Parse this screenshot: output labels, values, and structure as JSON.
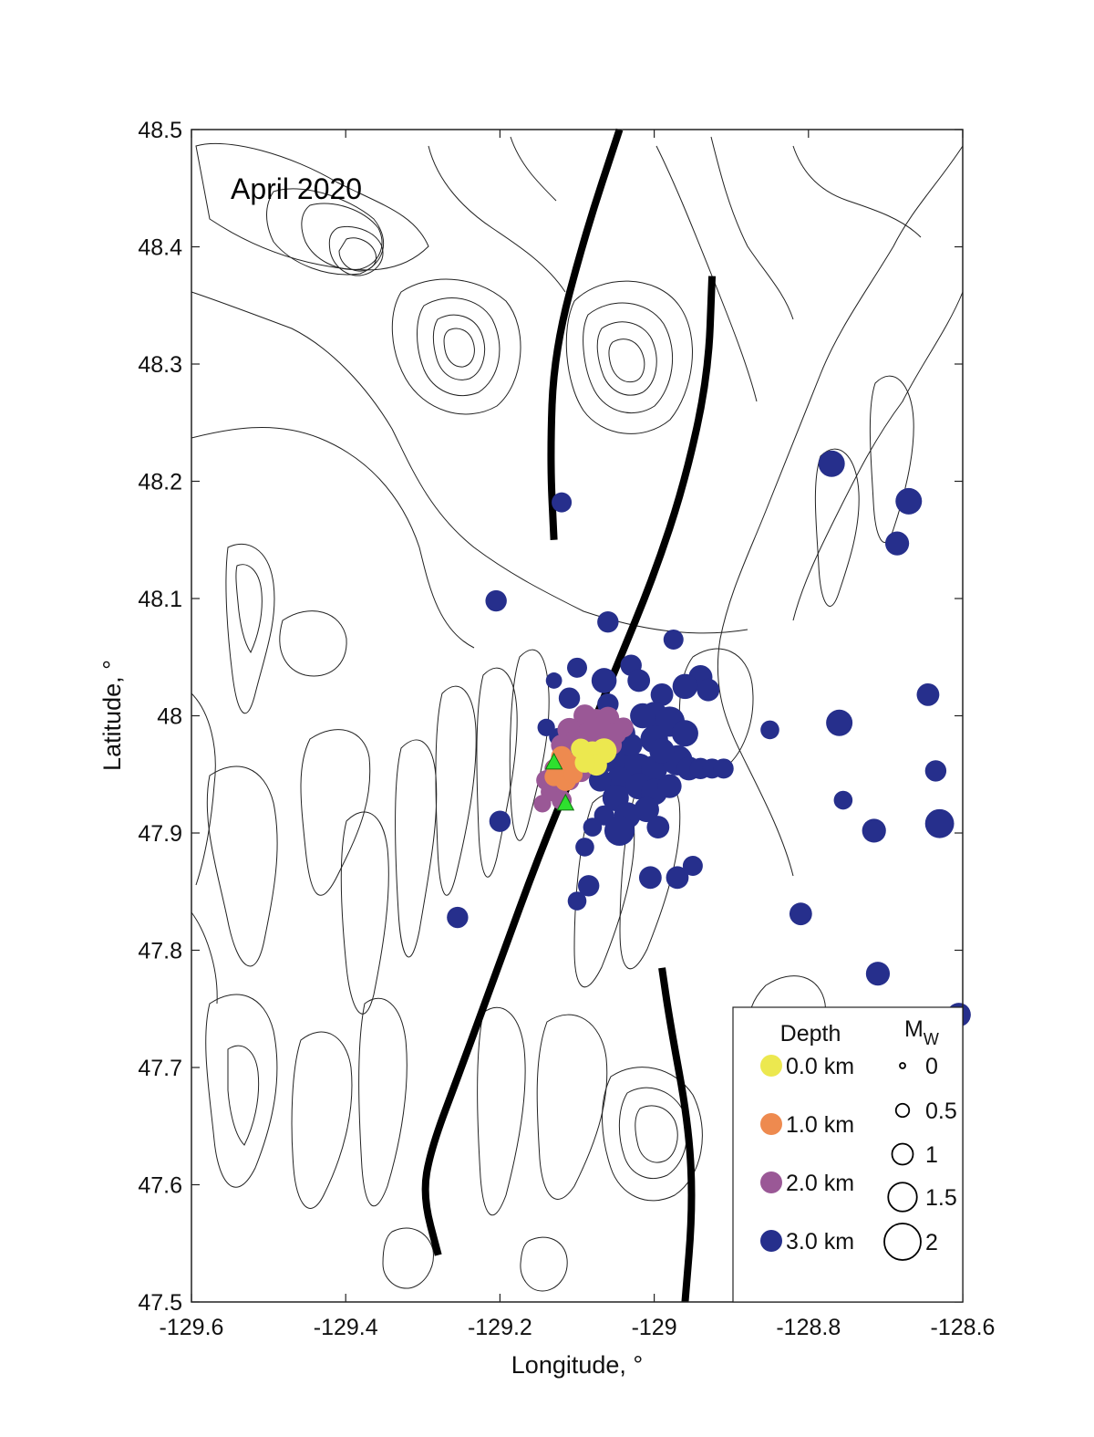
{
  "panel_label": "April 2020",
  "chart_data": {
    "type": "scatter",
    "xlabel": "Longitude, °",
    "ylabel": "Latitude, °",
    "xlim": [
      -129.6,
      -128.6
    ],
    "ylim": [
      47.5,
      48.5
    ],
    "x_ticks": [
      -129.6,
      -129.4,
      -129.2,
      -129,
      -128.8,
      -128.6
    ],
    "x_tick_labels": [
      "-129.6",
      "-129.4",
      "-129.2",
      "-129",
      "-128.8",
      "-128.6"
    ],
    "y_ticks": [
      47.5,
      47.6,
      47.7,
      47.8,
      47.9,
      48.0,
      48.1,
      48.2,
      48.3,
      48.4,
      48.5
    ],
    "y_tick_labels": [
      "47.5",
      "47.6",
      "47.7",
      "47.8",
      "47.9",
      "48",
      "48.1",
      "48.2",
      "48.3",
      "48.4",
      "48.5"
    ],
    "depth_colors": {
      "0.0": "#ece84f",
      "1.0": "#ee8a4f",
      "2.0": "#9a5896",
      "3.0": "#262f8c"
    },
    "legend": {
      "depth_title": "Depth",
      "depth_entries": [
        {
          "label": "0.0 km",
          "color": "#ece84f"
        },
        {
          "label": "1.0 km",
          "color": "#ee8a4f"
        },
        {
          "label": "2.0 km",
          "color": "#9a5896"
        },
        {
          "label": "3.0 km",
          "color": "#262f8c"
        }
      ],
      "mag_title": "M",
      "mag_subscript": "W",
      "mag_entries": [
        {
          "label": "0",
          "mw": 0
        },
        {
          "label": "0.5",
          "mw": 0.5
        },
        {
          "label": "1",
          "mw": 1
        },
        {
          "label": "1.5",
          "mw": 1.5
        },
        {
          "label": "2",
          "mw": 2
        }
      ]
    },
    "ridge_segments": [
      {
        "name": "northern",
        "points": [
          [
            -129.045,
            48.5
          ],
          [
            -129.09,
            48.41
          ],
          [
            -129.13,
            48.31
          ],
          [
            -129.135,
            48.22
          ],
          [
            -129.13,
            48.15
          ]
        ]
      },
      {
        "name": "middle",
        "points": [
          [
            -128.925,
            48.375
          ],
          [
            -128.93,
            48.29
          ],
          [
            -128.96,
            48.2
          ],
          [
            -129.0,
            48.12
          ],
          [
            -129.05,
            48.04
          ],
          [
            -129.1,
            47.96
          ],
          [
            -129.15,
            47.88
          ],
          [
            -129.2,
            47.79
          ],
          [
            -129.25,
            47.7
          ],
          [
            -129.29,
            47.63
          ],
          [
            -129.3,
            47.59
          ],
          [
            -129.28,
            47.54
          ]
        ]
      },
      {
        "name": "southern",
        "points": [
          [
            -128.99,
            47.785
          ],
          [
            -128.98,
            47.74
          ],
          [
            -128.955,
            47.65
          ],
          [
            -128.95,
            47.58
          ],
          [
            -128.96,
            47.5
          ]
        ]
      }
    ],
    "stations": [
      [
        -129.13,
        47.96
      ],
      [
        -129.115,
        47.925
      ]
    ],
    "series": [
      {
        "depth_km": 3.0,
        "points": [
          [
            -128.77,
            48.215,
            1.5
          ],
          [
            -128.67,
            48.183,
            1.5
          ],
          [
            -128.685,
            48.147,
            1.3
          ],
          [
            -129.12,
            48.182,
            1.0
          ],
          [
            -129.205,
            48.098,
            1.1
          ],
          [
            -129.06,
            48.08,
            1.1
          ],
          [
            -128.975,
            48.065,
            1.0
          ],
          [
            -129.03,
            48.043,
            1.1
          ],
          [
            -129.1,
            48.041,
            1.0
          ],
          [
            -129.13,
            48.03,
            0.7
          ],
          [
            -129.065,
            48.03,
            1.4
          ],
          [
            -129.02,
            48.03,
            1.2
          ],
          [
            -128.94,
            48.033,
            1.3
          ],
          [
            -128.96,
            48.025,
            1.4
          ],
          [
            -128.93,
            48.022,
            1.2
          ],
          [
            -128.99,
            48.018,
            1.2
          ],
          [
            -129.0,
            48.0,
            1.6
          ],
          [
            -128.98,
            47.995,
            1.8
          ],
          [
            -129.11,
            48.015,
            1.1
          ],
          [
            -129.04,
            47.985,
            1.3
          ],
          [
            -129.0,
            47.98,
            1.6
          ],
          [
            -128.96,
            47.985,
            1.5
          ],
          [
            -129.125,
            47.982,
            0.8
          ],
          [
            -128.85,
            47.988,
            0.9
          ],
          [
            -128.76,
            47.994,
            1.5
          ],
          [
            -128.645,
            48.018,
            1.2
          ],
          [
            -129.06,
            47.963,
            1.4
          ],
          [
            -129.04,
            47.963,
            1.8
          ],
          [
            -129.02,
            47.955,
            1.8
          ],
          [
            -129.0,
            47.955,
            1.5
          ],
          [
            -128.97,
            47.962,
            1.8
          ],
          [
            -128.955,
            47.955,
            1.3
          ],
          [
            -128.94,
            47.955,
            1.1
          ],
          [
            -128.925,
            47.955,
            1.0
          ],
          [
            -128.91,
            47.955,
            1.0
          ],
          [
            -129.045,
            47.945,
            1.5
          ],
          [
            -129.02,
            47.94,
            1.5
          ],
          [
            -129.0,
            47.935,
            1.5
          ],
          [
            -128.98,
            47.94,
            1.3
          ],
          [
            -129.05,
            47.93,
            1.5
          ],
          [
            -129.035,
            47.915,
            1.5
          ],
          [
            -129.01,
            47.92,
            1.4
          ],
          [
            -128.995,
            47.905,
            1.2
          ],
          [
            -129.045,
            47.902,
            1.8
          ],
          [
            -128.755,
            47.928,
            0.9
          ],
          [
            -128.635,
            47.953,
            1.1
          ],
          [
            -128.715,
            47.902,
            1.3
          ],
          [
            -128.63,
            47.908,
            1.7
          ],
          [
            -129.065,
            47.915,
            1.0
          ],
          [
            -129.08,
            47.905,
            0.9
          ],
          [
            -129.2,
            47.91,
            1.1
          ],
          [
            -129.09,
            47.888,
            0.9
          ],
          [
            -129.005,
            47.862,
            1.2
          ],
          [
            -128.97,
            47.862,
            1.2
          ],
          [
            -128.95,
            47.872,
            1.0
          ],
          [
            -129.085,
            47.855,
            1.1
          ],
          [
            -129.1,
            47.842,
            0.9
          ],
          [
            -129.255,
            47.828,
            1.1
          ],
          [
            -128.81,
            47.831,
            1.2
          ],
          [
            -128.71,
            47.78,
            1.3
          ],
          [
            -128.605,
            47.745,
            1.3
          ],
          [
            -128.77,
            47.68,
            1.2
          ],
          [
            -129.14,
            47.99,
            0.8
          ],
          [
            -129.06,
            48.01,
            1.1
          ],
          [
            -129.015,
            48.0,
            1.4
          ],
          [
            -129.03,
            47.975,
            1.2
          ],
          [
            -128.99,
            47.97,
            1.4
          ],
          [
            -129.07,
            47.945,
            1.2
          ]
        ]
      },
      {
        "depth_km": 2.0,
        "points": [
          [
            -129.09,
            48.0,
            1.2
          ],
          [
            -129.075,
            47.995,
            1.4
          ],
          [
            -129.06,
            47.998,
            1.2
          ],
          [
            -129.11,
            47.988,
            1.3
          ],
          [
            -129.1,
            47.978,
            1.4
          ],
          [
            -129.085,
            47.985,
            1.2
          ],
          [
            -129.065,
            47.985,
            1.3
          ],
          [
            -129.05,
            47.985,
            1.1
          ],
          [
            -129.04,
            47.99,
            1.0
          ],
          [
            -129.12,
            47.975,
            1.1
          ],
          [
            -129.1,
            47.968,
            1.3
          ],
          [
            -129.08,
            47.97,
            1.1
          ],
          [
            -129.115,
            47.96,
            1.1
          ],
          [
            -129.11,
            47.945,
            1.0
          ],
          [
            -129.125,
            47.94,
            1.1
          ],
          [
            -129.135,
            47.935,
            0.9
          ],
          [
            -129.12,
            47.928,
            1.0
          ],
          [
            -129.14,
            47.945,
            1.0
          ],
          [
            -129.145,
            47.925,
            0.8
          ],
          [
            -129.095,
            47.952,
            1.0
          ],
          [
            -129.07,
            47.99,
            1.0
          ],
          [
            -129.13,
            47.955,
            0.9
          ],
          [
            -129.055,
            47.975,
            1.0
          ]
        ]
      },
      {
        "depth_km": 1.0,
        "points": [
          [
            -129.12,
            47.965,
            1.1
          ],
          [
            -129.125,
            47.955,
            1.2
          ],
          [
            -129.11,
            47.958,
            1.1
          ],
          [
            -129.115,
            47.945,
            1.1
          ],
          [
            -129.095,
            47.963,
            1.0
          ],
          [
            -129.13,
            47.948,
            0.9
          ],
          [
            -129.105,
            47.95,
            0.9
          ]
        ]
      },
      {
        "depth_km": 0.0,
        "points": [
          [
            -129.08,
            47.968,
            1.3
          ],
          [
            -129.065,
            47.97,
            1.4
          ],
          [
            -129.095,
            47.972,
            1.0
          ],
          [
            -129.075,
            47.958,
            1.1
          ],
          [
            -129.09,
            47.96,
            1.0
          ]
        ]
      }
    ]
  }
}
